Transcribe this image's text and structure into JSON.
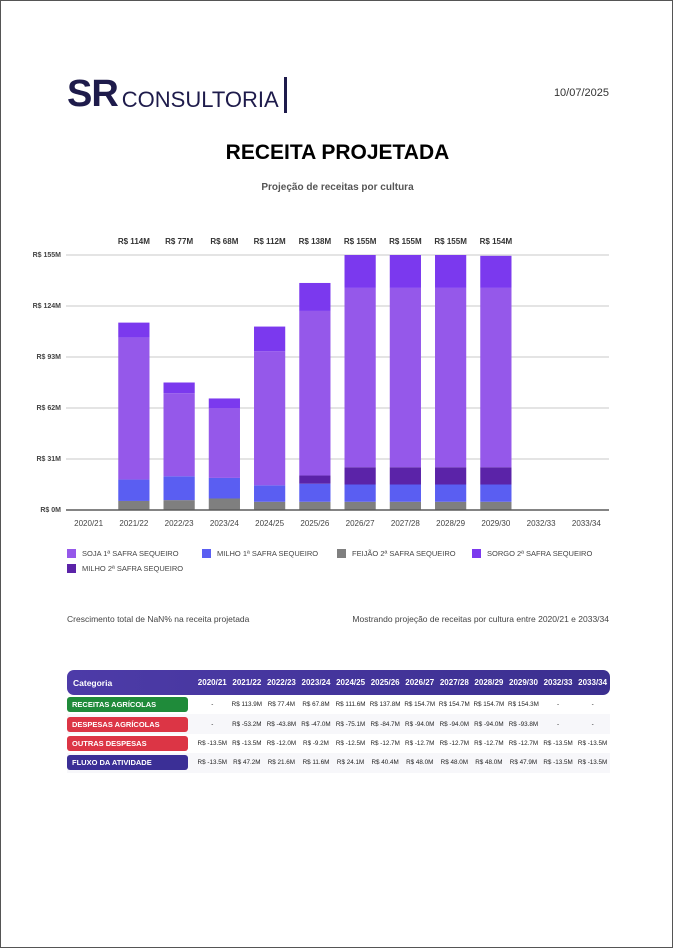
{
  "header": {
    "logo_mark": "SR",
    "logo_text": "CONSULTORIA",
    "date": "10/07/2025"
  },
  "chart_data": {
    "type": "stacked_bar",
    "title": "RECEITA PROJETADA",
    "subtitle": "Projeção de receitas por cultura",
    "categories": [
      "2020/21",
      "2021/22",
      "2022/23",
      "2023/24",
      "2024/25",
      "2025/26",
      "2026/27",
      "2027/28",
      "2028/29",
      "2029/30",
      "2032/33",
      "2033/34"
    ],
    "series": [
      {
        "name": "SOJA 1ª SAFRA SEQUEIRO",
        "color": "#9558ea",
        "values": [
          null,
          86.4,
          50.5,
          42.5,
          81.5,
          100,
          109,
          109,
          109,
          109,
          null,
          null
        ]
      },
      {
        "name": "MILHO 1ª SAFRA SEQUEIRO",
        "color": "#5a5ef2",
        "values": [
          null,
          13,
          14.5,
          12.5,
          10,
          11,
          10.5,
          10.5,
          10.5,
          10.5,
          null,
          null
        ]
      },
      {
        "name": "FEIJÃO 2ª SAFRA SEQUEIRO",
        "color": "#7f7f7f",
        "values": [
          null,
          5.5,
          6,
          7,
          5,
          5,
          5,
          5,
          5,
          5,
          null,
          null
        ]
      },
      {
        "name": "SORGO 2ª SAFRA SEQUEIRO",
        "color": "#7b39ee",
        "values": [
          null,
          9,
          6.5,
          5.8,
          15,
          17,
          20,
          20,
          20,
          19.5,
          null,
          null
        ]
      },
      {
        "name": "MILHO 2ª SAFRA SEQUEIRO",
        "color": "#5b23a8",
        "values": [
          null,
          null,
          null,
          null,
          null,
          5,
          10.5,
          10.5,
          10.5,
          10.5,
          null,
          null
        ]
      }
    ],
    "totals": {
      "values": [
        null,
        113.9,
        77.4,
        67.8,
        111.6,
        137.8,
        154.7,
        154.7,
        154.7,
        154.3,
        null,
        null
      ],
      "value_labels": [
        null,
        "R$ 114M",
        "R$ 77M",
        "R$ 68M",
        "R$ 112M",
        "R$ 138M",
        "R$ 155M",
        "R$ 155M",
        "R$ 155M",
        "R$ 154M",
        null,
        null
      ]
    },
    "ylim": [
      0,
      155
    ],
    "yticks": [
      {
        "value": 0,
        "label": "R$ 0M"
      },
      {
        "value": 31,
        "label": "R$ 31M"
      },
      {
        "value": 62,
        "label": "R$ 62M"
      },
      {
        "value": 93,
        "label": "R$ 93M"
      },
      {
        "value": 124,
        "label": "R$ 124M"
      },
      {
        "value": 155,
        "label": "R$ 155M"
      }
    ],
    "grid": true,
    "legend": "bottom"
  },
  "notes": {
    "left": "Crescimento total de NaN% na receita projetada",
    "right": "Mostrando projeção de receitas por cultura entre 2020/21 e 2033/34"
  },
  "table": {
    "header": [
      "Categoria",
      "2020/21",
      "2021/22",
      "2022/23",
      "2023/24",
      "2024/25",
      "2025/26",
      "2026/27",
      "2027/28",
      "2028/29",
      "2029/30",
      "2032/33",
      "2033/34"
    ],
    "rows": [
      {
        "label": "RECEITAS AGRÍCOLAS",
        "color": "#1f8b3a",
        "cells": [
          "-",
          "R$ 113.9M",
          "R$ 77.4M",
          "R$ 67.8M",
          "R$ 111.6M",
          "R$ 137.8M",
          "R$ 154.7M",
          "R$ 154.7M",
          "R$ 154.7M",
          "R$ 154.3M",
          "-",
          "-"
        ]
      },
      {
        "label": "DESPESAS AGRÍCOLAS",
        "color": "#dc3545",
        "cells": [
          "-",
          "R$ -53.2M",
          "R$ -43.8M",
          "R$ -47.0M",
          "R$ -75.1M",
          "R$ -84.7M",
          "R$ -94.0M",
          "R$ -94.0M",
          "R$ -94.0M",
          "R$ -93.8M",
          "-",
          "-"
        ]
      },
      {
        "label": "OUTRAS DESPESAS",
        "color": "#dc3545",
        "cells": [
          "R$ -13.5M",
          "R$ -13.5M",
          "R$ -12.0M",
          "R$ -9.2M",
          "R$ -12.5M",
          "R$ -12.7M",
          "R$ -12.7M",
          "R$ -12.7M",
          "R$ -12.7M",
          "R$ -12.7M",
          "R$ -13.5M",
          "R$ -13.5M"
        ]
      },
      {
        "label": "FLUXO DA ATIVIDADE",
        "color": "#3b2f96",
        "cells": [
          "R$ -13.5M",
          "R$ 47.2M",
          "R$ 21.6M",
          "R$ 11.6M",
          "R$ 24.1M",
          "R$ 40.4M",
          "R$ 48.0M",
          "R$ 48.0M",
          "R$ 48.0M",
          "R$ 47.9M",
          "R$ -13.5M",
          "R$ -13.5M"
        ]
      }
    ]
  }
}
